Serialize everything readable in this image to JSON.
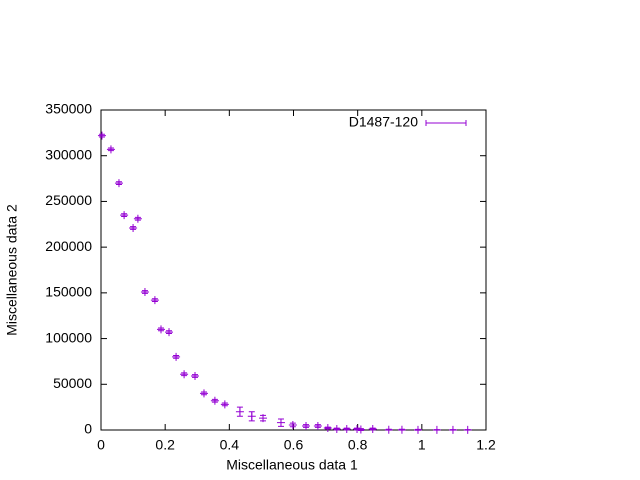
{
  "chart_data": {
    "type": "scatter",
    "xlabel": "Miscellaneous data 1",
    "ylabel": "Miscellaneous data 2",
    "xlim": [
      0,
      1.2
    ],
    "ylim": [
      0,
      350000
    ],
    "xticks": [
      0,
      0.2,
      0.4,
      0.6,
      0.8,
      1,
      1.2
    ],
    "yticks": [
      0,
      50000,
      100000,
      150000,
      200000,
      250000,
      300000,
      350000
    ],
    "legend": "top right",
    "grid": false,
    "series": [
      {
        "name": "D1487-120",
        "color": "#9400d3",
        "x": [
          0.003,
          0.031,
          0.056,
          0.072,
          0.1,
          0.115,
          0.137,
          0.168,
          0.187,
          0.212,
          0.234,
          0.259,
          0.293,
          0.321,
          0.355,
          0.386,
          0.433,
          0.47,
          0.505,
          0.561,
          0.598,
          0.639,
          0.676,
          0.707,
          0.735,
          0.766,
          0.798,
          0.81,
          0.847,
          0.897,
          0.938,
          0.988,
          1.047,
          1.097,
          1.143
        ],
        "values": [
          322000,
          307000,
          270000,
          235000,
          221000,
          231000,
          151000,
          142000,
          110000,
          107000,
          80000,
          61000,
          59000,
          40000,
          32000,
          28000,
          20000,
          15000,
          13000,
          8000,
          5500,
          4400,
          4400,
          2200,
          1100,
          1100,
          1100,
          500,
          1100,
          300,
          300,
          200,
          100,
          100,
          100
        ],
        "errors": [
          1500,
          1500,
          1500,
          1500,
          1500,
          1500,
          1500,
          1500,
          1500,
          1500,
          1500,
          1500,
          1500,
          1500,
          1500,
          1500,
          5000,
          5000,
          3000,
          4000,
          2000,
          1500,
          1500,
          1000,
          1000,
          1000,
          1000,
          1000,
          1000,
          500,
          500,
          500,
          300,
          300,
          300
        ]
      }
    ]
  }
}
